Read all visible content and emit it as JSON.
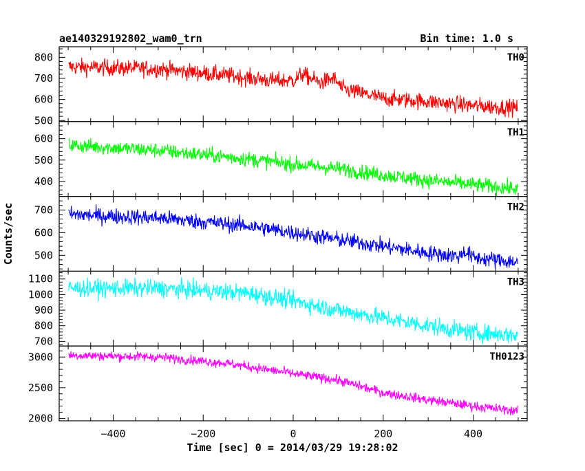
{
  "chart_data": {
    "type": "line",
    "title_left": "ae140329192802_wam0_trn",
    "title_right": "Bin time: 1.0 s",
    "xlabel": "Time [sec] 0 = 2014/03/29 19:28:02",
    "ylabel": "Counts/sec",
    "xlim": [
      -520,
      520
    ],
    "xticks": [
      -400,
      -200,
      0,
      200,
      400
    ],
    "x_start": -499,
    "x_end": 499,
    "bin_time": 1.0,
    "panels": [
      {
        "name": "TH0",
        "color": "#ff0000",
        "ylim": [
          495,
          850
        ],
        "yticks": [
          500,
          600,
          700,
          800
        ],
        "trend": [
          [
            -499,
            755
          ],
          [
            -300,
            745
          ],
          [
            -150,
            715
          ],
          [
            -50,
            690
          ],
          [
            0,
            690
          ],
          [
            20,
            720
          ],
          [
            60,
            680
          ],
          [
            90,
            700
          ],
          [
            110,
            650
          ],
          [
            200,
            605
          ],
          [
            300,
            590
          ],
          [
            400,
            570
          ],
          [
            499,
            560
          ]
        ],
        "noise": 28
      },
      {
        "name": "TH1",
        "color": "#00ff00",
        "ylim": [
          330,
          680
        ],
        "yticks": [
          400,
          500,
          600
        ],
        "trend": [
          [
            -499,
            570
          ],
          [
            -300,
            545
          ],
          [
            -100,
            505
          ],
          [
            0,
            480
          ],
          [
            100,
            460
          ],
          [
            200,
            430
          ],
          [
            300,
            405
          ],
          [
            400,
            385
          ],
          [
            499,
            365
          ]
        ],
        "noise": 25
      },
      {
        "name": "TH2",
        "color": "#0000ff",
        "ylim": [
          430,
          760
        ],
        "yticks": [
          500,
          600,
          700
        ],
        "trend": [
          [
            -499,
            680
          ],
          [
            -300,
            665
          ],
          [
            -100,
            630
          ],
          [
            0,
            600
          ],
          [
            100,
            570
          ],
          [
            200,
            540
          ],
          [
            300,
            510
          ],
          [
            370,
            495
          ],
          [
            380,
            520
          ],
          [
            400,
            490
          ],
          [
            499,
            470
          ]
        ],
        "noise": 25
      },
      {
        "name": "TH3",
        "color": "#00ffff",
        "ylim": [
          670,
          1150
        ],
        "yticks": [
          700,
          800,
          900,
          1000,
          1100
        ],
        "trend": [
          [
            -499,
            1040
          ],
          [
            -300,
            1040
          ],
          [
            -100,
            1010
          ],
          [
            0,
            960
          ],
          [
            100,
            900
          ],
          [
            200,
            850
          ],
          [
            300,
            800
          ],
          [
            400,
            755
          ],
          [
            499,
            740
          ]
        ],
        "noise": 40
      },
      {
        "name": "TH0123",
        "color": "#ff00ff",
        "ylim": [
          1960,
          3180
        ],
        "yticks": [
          2000,
          2500,
          3000
        ],
        "trend": [
          [
            -499,
            3030
          ],
          [
            -300,
            3000
          ],
          [
            -150,
            2900
          ],
          [
            0,
            2730
          ],
          [
            100,
            2620
          ],
          [
            200,
            2420
          ],
          [
            300,
            2300
          ],
          [
            400,
            2200
          ],
          [
            499,
            2120
          ]
        ],
        "noise": 55
      }
    ]
  }
}
